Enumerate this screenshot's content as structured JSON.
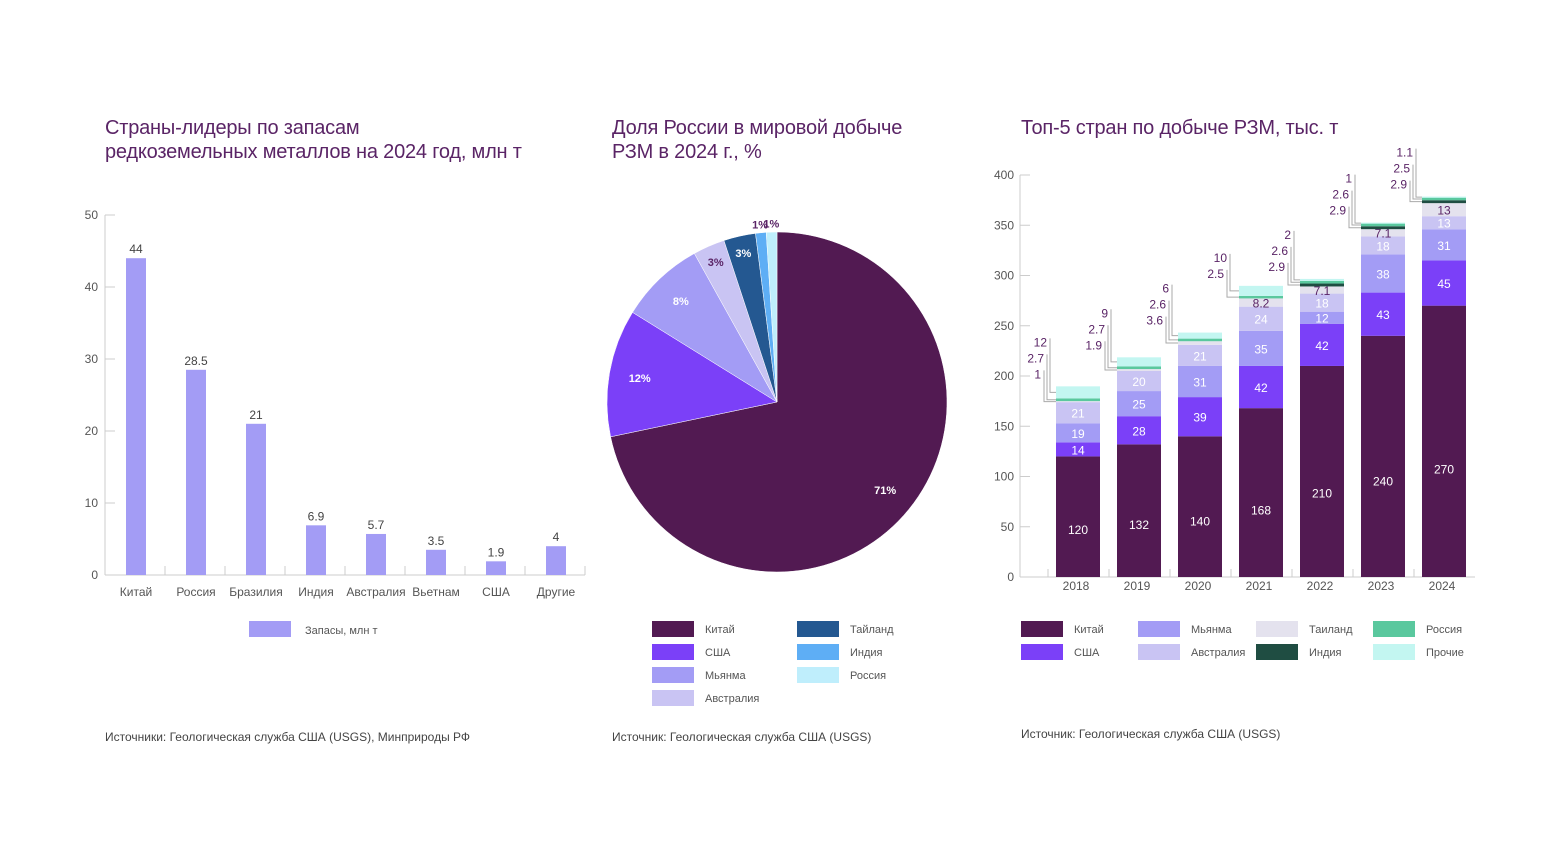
{
  "chart_data": [
    {
      "type": "bar",
      "title": "Страны-лидеры по запасам редкоземельных металлов на 2024 год, млн т",
      "categories": [
        "Китай",
        "Россия",
        "Бразилия",
        "Индия",
        "Австралия",
        "Вьетнам",
        "США",
        "Другие"
      ],
      "series": [
        {
          "name": "Запасы, млн т",
          "values": [
            44,
            28.5,
            21,
            6.9,
            5.7,
            3.5,
            1.9,
            4
          ],
          "color": "#a39cf5"
        }
      ],
      "value_labels": [
        "44",
        "28.5",
        "21",
        "6.9",
        "5.7",
        "3.5",
        "1.9",
        "4"
      ],
      "yticks": [
        "0",
        "10",
        "20",
        "30",
        "40",
        "50"
      ],
      "ylim": [
        0,
        50
      ],
      "grid": false,
      "legend": "bottom",
      "source": "Источники: Геологическая служба США (USGS), Минприроды РФ"
    },
    {
      "type": "pie",
      "title": "Доля России в мировой добыче РЗМ в 2024 г., %",
      "slices": [
        {
          "label": "Китай",
          "value": 71,
          "text": "71%",
          "color": "#521a52"
        },
        {
          "label": "США",
          "value": 12,
          "text": "12%",
          "color": "#7b40f8"
        },
        {
          "label": "Мьянма",
          "value": 8,
          "text": "8%",
          "color": "#a39cf5"
        },
        {
          "label": "Австралия",
          "value": 3,
          "text": "3%",
          "color": "#c9c4f3"
        },
        {
          "label": "Тайланд",
          "value": 3,
          "text": "3%",
          "color": "#245891"
        },
        {
          "label": "Индия",
          "value": 1,
          "text": "1%",
          "color": "#5eaef5"
        },
        {
          "label": "Россия",
          "value": 1,
          "text": "1%",
          "color": "#bfeefc"
        }
      ],
      "legend": "bottom",
      "source": "Источник: Геологическая служба США (USGS)"
    },
    {
      "type": "bar",
      "stacked": true,
      "title": "Топ-5 стран по добыче РЗМ, тыс. т",
      "categories": [
        "2018",
        "2019",
        "2020",
        "2021",
        "2022",
        "2023",
        "2024"
      ],
      "series": [
        {
          "name": "Китай",
          "color": "#521a52",
          "values": [
            120,
            132,
            140,
            168,
            210,
            240,
            270
          ]
        },
        {
          "name": "США",
          "color": "#7b40f8",
          "values": [
            14,
            28,
            39,
            42,
            42,
            43,
            45
          ]
        },
        {
          "name": "Мьянма",
          "color": "#a39cf5",
          "values": [
            19,
            25,
            31,
            35,
            12,
            38,
            31
          ]
        },
        {
          "name": "Австралия",
          "color": "#c9c4f3",
          "values": [
            21,
            20,
            21,
            24,
            18,
            18,
            13
          ]
        },
        {
          "name": "Таиланд",
          "color": "#e4e2ee",
          "values": [
            1,
            1.9,
            3.6,
            8.2,
            7.1,
            7.1,
            13
          ]
        },
        {
          "name": "Индия",
          "color": "#1f4d42",
          "values": [
            null,
            null,
            null,
            null,
            2.9,
            2.9,
            2.9
          ]
        },
        {
          "name": "Россия",
          "color": "#5ac89e",
          "values": [
            2.7,
            2.7,
            2.6,
            2.5,
            2.6,
            2.6,
            2.5
          ]
        },
        {
          "name": "Прочие",
          "color": "#c3f6f1",
          "values": [
            12,
            9,
            6,
            10,
            2,
            1,
            1.1
          ]
        }
      ],
      "yticks": [
        "0",
        "50",
        "100",
        "150",
        "200",
        "250",
        "300",
        "350",
        "400"
      ],
      "ylim": [
        0,
        400
      ],
      "grid": false,
      "legend": "bottom",
      "source": "Источник: Геологическая служба США (USGS)"
    }
  ],
  "titles": {
    "reserves_line1": "Страны-лидеры по запасам",
    "reserves_line2": "редкоземельных металлов на 2024 год, млн т",
    "pie_line1": "Доля России в мировой добыче",
    "pie_line2": "РЗМ в 2024 г., %",
    "stacked": "Топ-5 стран по добыче РЗМ, тыс. т"
  },
  "colors": {
    "title": "#5a2466",
    "label_dark": "#5a2466",
    "axis": "#cccccc"
  }
}
